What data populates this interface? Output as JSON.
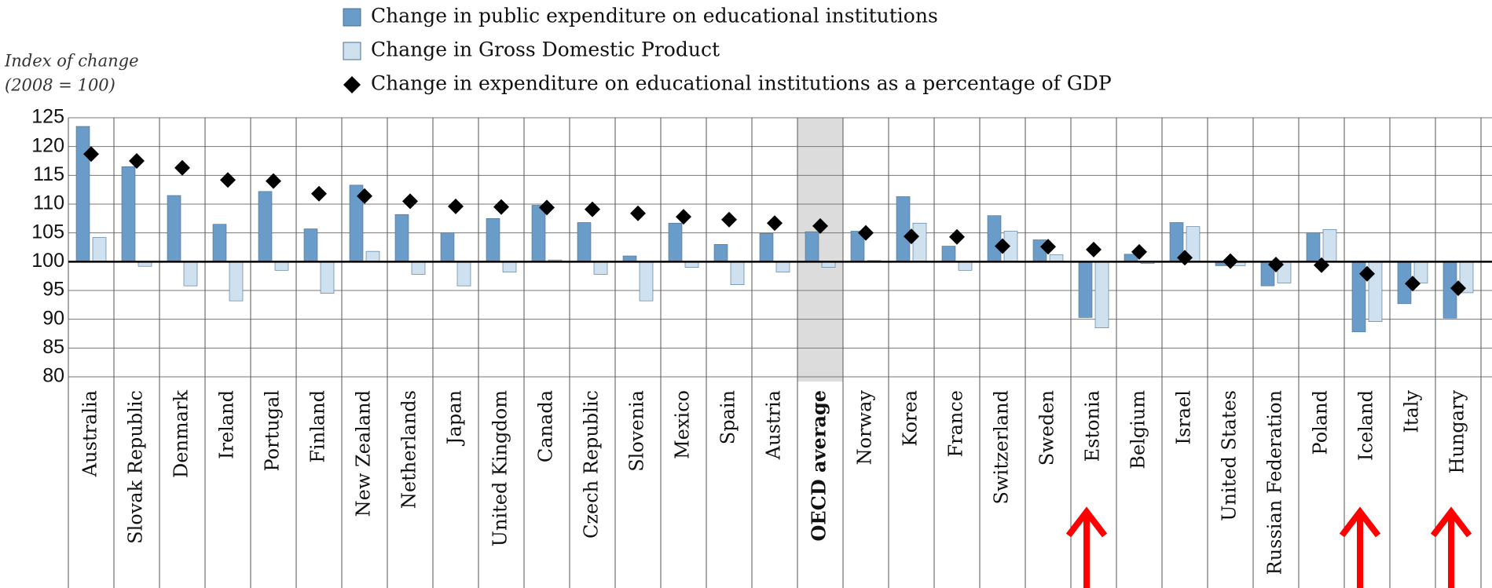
{
  "chart_data": {
    "type": "bar",
    "legend": [
      "Change in public expenditure on educational institutions",
      "Change in Gross Domestic Product",
      "Change in expenditure on educational institutions as a percentage of GDP"
    ],
    "y_label": [
      "Index of change",
      "(2008 = 100)"
    ],
    "categories": [
      "Australia",
      "Slovak Republic",
      "Denmark",
      "Ireland",
      "Portugal",
      "Finland",
      "New Zealand",
      "Netherlands",
      "Japan",
      "United Kingdom",
      "Canada",
      "Czech Republic",
      "Slovenia",
      "Mexico",
      "Spain",
      "Austria",
      "OECD average",
      "Norway",
      "Korea",
      "France",
      "Switzerland",
      "Sweden",
      "Estonia",
      "Belgium",
      "Israel",
      "United States",
      "Russian Federation",
      "Poland",
      "Iceland",
      "Italy",
      "Hungary"
    ],
    "highlight_category": "OECD average",
    "base": 100,
    "series": [
      {
        "name": "Change in public expenditure on educational institutions",
        "color": "#6a9cca",
        "mark": "bar",
        "values": [
          123.5,
          116.5,
          111.5,
          106.5,
          112.2,
          105.7,
          113.3,
          108.2,
          105,
          107.5,
          109.8,
          106.8,
          101,
          106.7,
          103,
          104.9,
          105.2,
          105.3,
          111.3,
          102.7,
          108,
          103.8,
          90.3,
          101.3,
          106.8,
          99.3,
          95.8,
          105,
          87.8,
          92.7,
          90.2
        ]
      },
      {
        "name": "Change in Gross Domestic Product",
        "color": "#cfe1ef",
        "mark": "bar",
        "values": [
          104.2,
          99.2,
          95.8,
          93.2,
          98.5,
          94.5,
          101.8,
          97.8,
          95.8,
          98.2,
          100.3,
          97.8,
          93.2,
          99,
          96,
          98.2,
          99,
          100.2,
          106.7,
          98.5,
          105.3,
          101.2,
          88.5,
          99.7,
          106.1,
          99.3,
          96.3,
          105.6,
          89.6,
          96.3,
          94.6
        ]
      },
      {
        "name": "Change in expenditure on educational institutions as a percentage of GDP",
        "color": "#000000",
        "mark": "diamond",
        "values": [
          118.7,
          117.5,
          116.3,
          114.2,
          114,
          111.8,
          111.4,
          110.5,
          109.6,
          109.5,
          109.4,
          109.1,
          108.4,
          107.8,
          107.3,
          106.7,
          106.2,
          105,
          104.4,
          104.3,
          102.7,
          102.6,
          102.1,
          101.7,
          100.7,
          100.1,
          99.5,
          99.4,
          97.9,
          96.2,
          95.4
        ]
      }
    ],
    "ylim": [
      80,
      125
    ],
    "yticks": [
      80,
      85,
      90,
      95,
      100,
      105,
      110,
      115,
      120,
      125
    ],
    "grid": true
  }
}
